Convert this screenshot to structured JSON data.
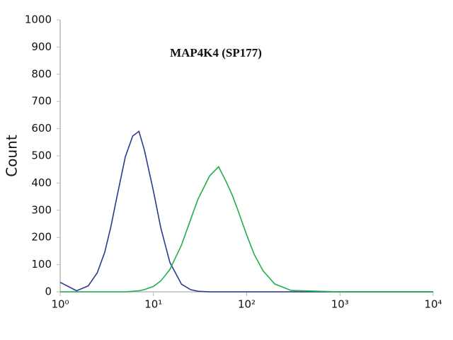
{
  "chart_data": {
    "type": "line",
    "title": "MAP4K4 (SP177)",
    "y_label": "Count",
    "log_x": true,
    "x": [
      1,
      1.5,
      2,
      2.5,
      3,
      3.5,
      4,
      5,
      6,
      7,
      8,
      10,
      12,
      15,
      20,
      25,
      30,
      40,
      50,
      60,
      70,
      80,
      100,
      120,
      150,
      200,
      300,
      1000,
      10000
    ],
    "series": [
      {
        "color": "#2b3990",
        "values": [
          35,
          4,
          22,
          70,
          145,
          240,
          338,
          497,
          573,
          590,
          521,
          370,
          235,
          108,
          28,
          8,
          2,
          0,
          0,
          0,
          0,
          0,
          0,
          0,
          0,
          0,
          0,
          0,
          0
        ]
      },
      {
        "color": "#1db04b",
        "values": [
          0,
          0,
          0,
          0,
          0,
          0,
          0,
          0,
          2,
          4,
          8,
          20,
          40,
          82,
          172,
          265,
          340,
          426,
          460,
          406,
          356,
          303,
          209,
          139,
          77,
          29,
          5,
          0,
          0
        ]
      }
    ],
    "xlim": [
      1,
      10000
    ],
    "xticks": [
      {
        "value": 1,
        "label": "10⁰"
      },
      {
        "value": 10,
        "label": "10¹"
      },
      {
        "value": 100,
        "label": "10²"
      },
      {
        "value": 1000,
        "label": "10³"
      },
      {
        "value": 10000,
        "label": "10⁴"
      }
    ],
    "ylim": [
      0,
      1000
    ],
    "yticks": [
      0,
      100,
      200,
      300,
      400,
      500,
      600,
      700,
      800,
      900,
      1000
    ]
  }
}
